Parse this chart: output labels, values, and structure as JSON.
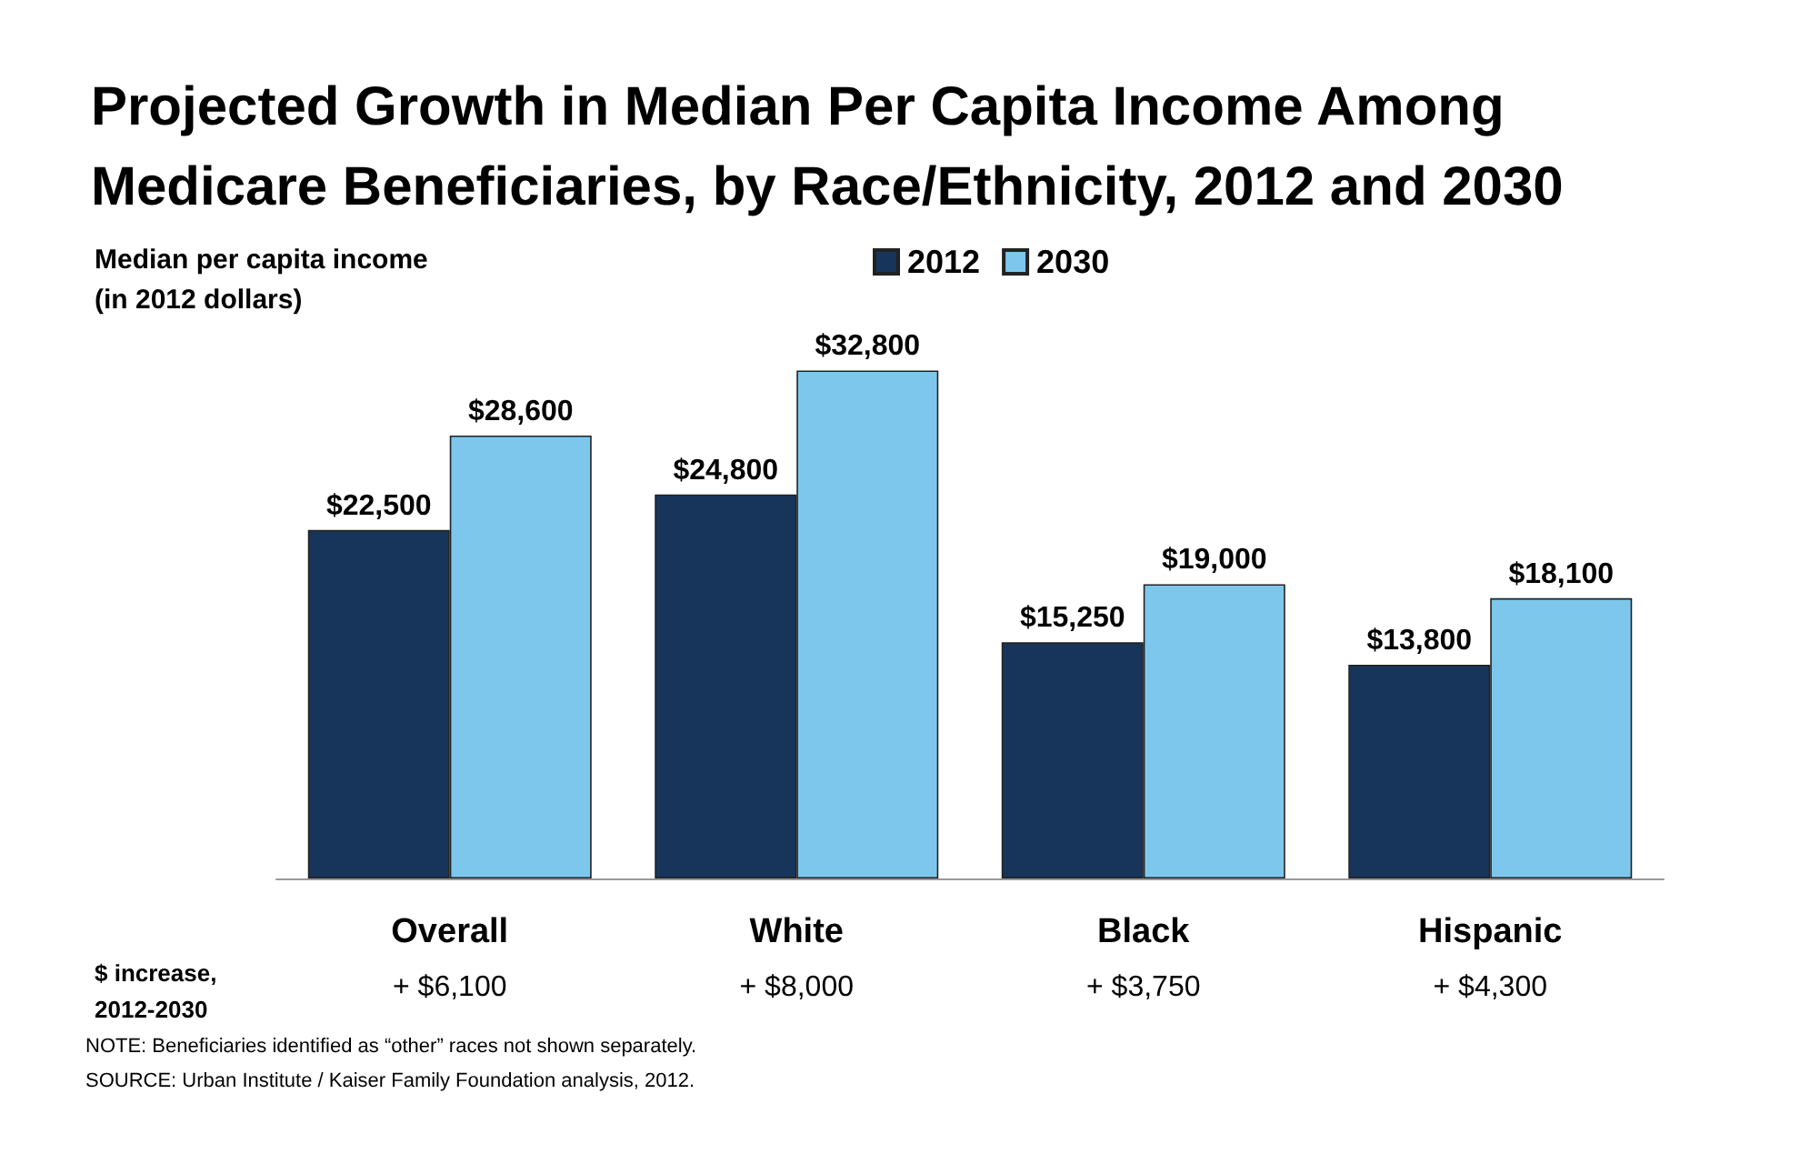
{
  "chart_data": {
    "type": "bar",
    "title": "Projected Growth in Median Per Capita Income Among\nMedicare Beneficiaries, by Race/Ethnicity, 2012 and 2030",
    "ylabel": "Median per capita income\n(in 2012 dollars)",
    "categories": [
      "Overall",
      "White",
      "Black",
      "Hispanic"
    ],
    "series": [
      {
        "name": "2012",
        "color": "#17355a",
        "values": [
          22500,
          24800,
          15250,
          13800
        ],
        "value_labels": [
          "$22,500",
          "$24,800",
          "$15,250",
          "$13,800"
        ]
      },
      {
        "name": "2030",
        "color": "#7dc7ed",
        "values": [
          28600,
          32800,
          19000,
          18100
        ],
        "value_labels": [
          "$28,600",
          "$32,800",
          "$19,000",
          "$18,100"
        ]
      }
    ],
    "legend": "top",
    "tick_labels": "x",
    "annotations": [
      "$ increase,\n2012-2030",
      "+ $6,100",
      "+ $8,000",
      "+ $3,750",
      "+ $4,300",
      "NOTE: Beneficiaries identified as “other” races not shown separately.",
      "SOURCE: Urban Institute / Kaiser Family Foundation analysis, 2012."
    ]
  }
}
